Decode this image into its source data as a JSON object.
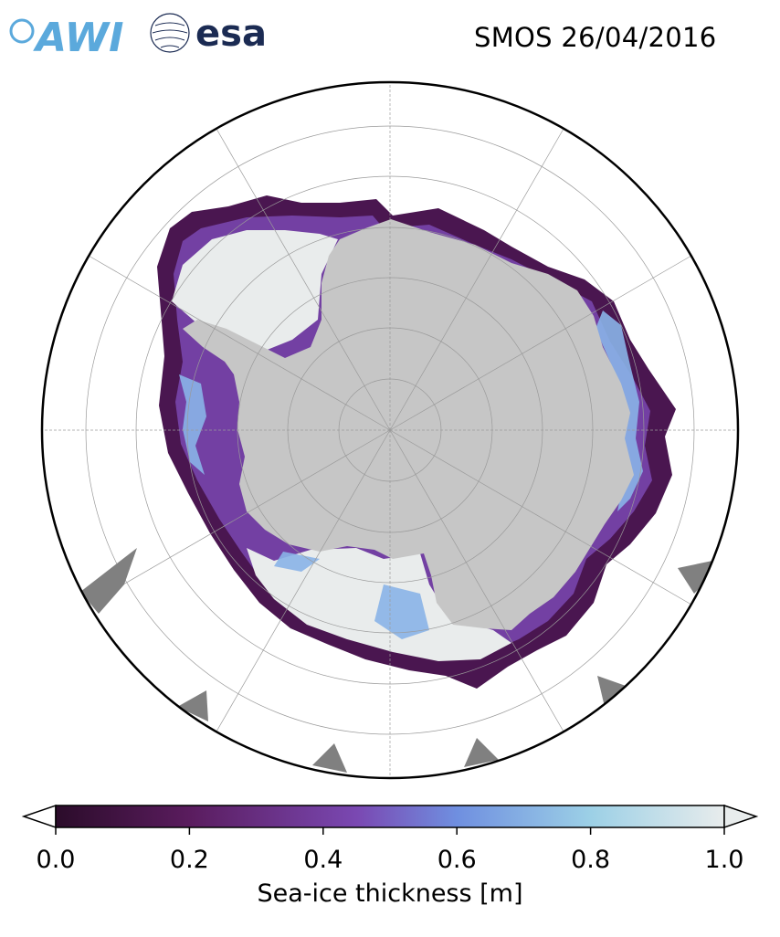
{
  "header": {
    "title": "SMOS 26/04/2016",
    "logos": [
      {
        "name": "AWI",
        "text": "AWI",
        "color": "#5ba9dc"
      },
      {
        "name": "esa",
        "text": "esa",
        "color": "#1b2b53"
      }
    ]
  },
  "map": {
    "projection": "south-polar-stereographic",
    "graticule": true,
    "land_color": "#c6c6c6",
    "ocean_color": "#ffffff",
    "mask_color": "#808080"
  },
  "colorbar": {
    "label": "Sea-ice thickness [m]",
    "min": 0.0,
    "max": 1.0,
    "ticks": [
      "0.0",
      "0.2",
      "0.4",
      "0.6",
      "0.8",
      "1.0"
    ],
    "colormap_stops": [
      "#2b0c2a",
      "#5a1c5e",
      "#7a48b2",
      "#6f8fe0",
      "#9cd0e6",
      "#e8ecec"
    ],
    "extend": "both"
  }
}
